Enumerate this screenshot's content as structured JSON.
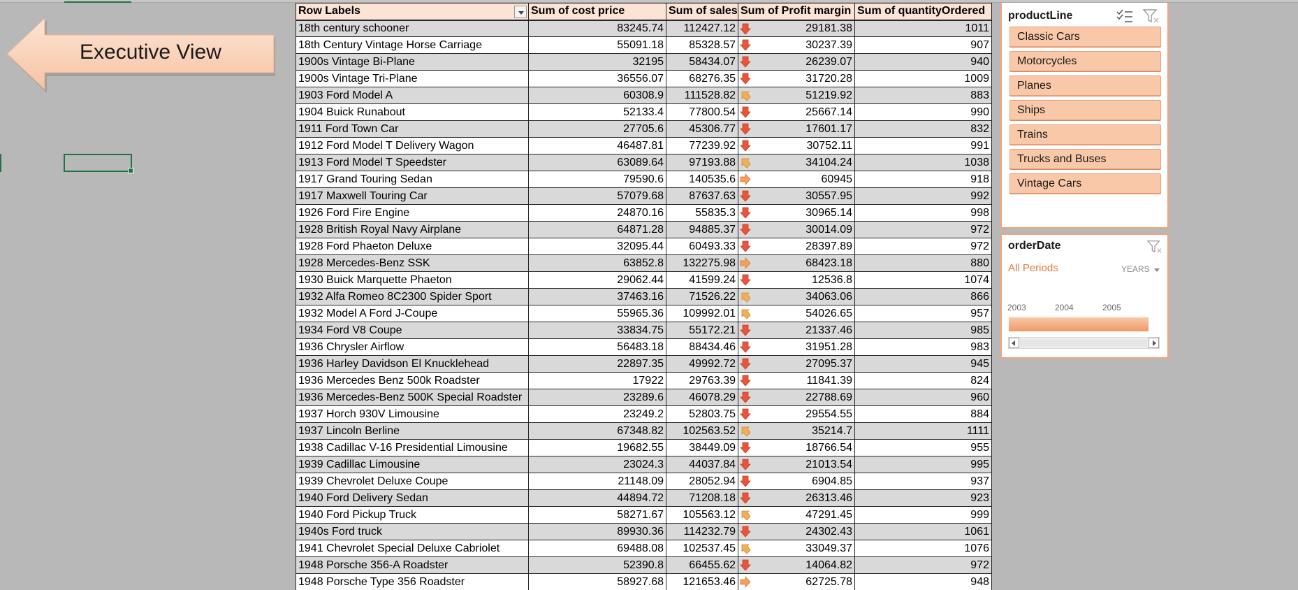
{
  "exec_button": {
    "label": "Executive View"
  },
  "pivot": {
    "headers": [
      "Row Labels",
      "Sum of cost price",
      "Sum of sales",
      "Sum of Profit margin",
      "Sum of quantityOrdered"
    ],
    "rows": [
      {
        "label": "18th century schooner",
        "cost": "83245.74",
        "sales": "112427.12",
        "icon": "arrow-down-icon",
        "profit": "29181.38",
        "qty": "1011"
      },
      {
        "label": "18th Century Vintage Horse Carriage",
        "cost": "55091.18",
        "sales": "85328.57",
        "icon": "arrow-down-icon",
        "profit": "30237.39",
        "qty": "907"
      },
      {
        "label": "1900s Vintage Bi-Plane",
        "cost": "32195",
        "sales": "58434.07",
        "icon": "arrow-down-icon",
        "profit": "26239.07",
        "qty": "940"
      },
      {
        "label": "1900s Vintage Tri-Plane",
        "cost": "36556.07",
        "sales": "68276.35",
        "icon": "arrow-down-icon",
        "profit": "31720.28",
        "qty": "1009"
      },
      {
        "label": "1903 Ford Model A",
        "cost": "60308.9",
        "sales": "111528.82",
        "icon": "arrow-diag-down-icon",
        "profit": "51219.92",
        "qty": "883"
      },
      {
        "label": "1904 Buick Runabout",
        "cost": "52133.4",
        "sales": "77800.54",
        "icon": "arrow-down-icon",
        "profit": "25667.14",
        "qty": "990"
      },
      {
        "label": "1911 Ford Town Car",
        "cost": "27705.6",
        "sales": "45306.77",
        "icon": "arrow-down-icon",
        "profit": "17601.17",
        "qty": "832"
      },
      {
        "label": "1912 Ford Model T Delivery Wagon",
        "cost": "46487.81",
        "sales": "77239.92",
        "icon": "arrow-down-icon",
        "profit": "30752.11",
        "qty": "991"
      },
      {
        "label": "1913 Ford Model T Speedster",
        "cost": "63089.64",
        "sales": "97193.88",
        "icon": "arrow-diag-down-icon",
        "profit": "34104.24",
        "qty": "1038"
      },
      {
        "label": "1917 Grand Touring Sedan",
        "cost": "79590.6",
        "sales": "140535.6",
        "icon": "arrow-right-icon",
        "profit": "60945",
        "qty": "918"
      },
      {
        "label": "1917 Maxwell Touring Car",
        "cost": "57079.68",
        "sales": "87637.63",
        "icon": "arrow-down-icon",
        "profit": "30557.95",
        "qty": "992"
      },
      {
        "label": "1926 Ford Fire Engine",
        "cost": "24870.16",
        "sales": "55835.3",
        "icon": "arrow-down-icon",
        "profit": "30965.14",
        "qty": "998"
      },
      {
        "label": "1928 British Royal Navy Airplane",
        "cost": "64871.28",
        "sales": "94885.37",
        "icon": "arrow-down-icon",
        "profit": "30014.09",
        "qty": "972"
      },
      {
        "label": "1928 Ford Phaeton Deluxe",
        "cost": "32095.44",
        "sales": "60493.33",
        "icon": "arrow-down-icon",
        "profit": "28397.89",
        "qty": "972"
      },
      {
        "label": "1928 Mercedes-Benz SSK",
        "cost": "63852.8",
        "sales": "132275.98",
        "icon": "arrow-right-icon",
        "profit": "68423.18",
        "qty": "880"
      },
      {
        "label": "1930 Buick Marquette Phaeton",
        "cost": "29062.44",
        "sales": "41599.24",
        "icon": "arrow-down-icon",
        "profit": "12536.8",
        "qty": "1074"
      },
      {
        "label": "1932 Alfa Romeo 8C2300 Spider Sport",
        "cost": "37463.16",
        "sales": "71526.22",
        "icon": "arrow-diag-down-icon",
        "profit": "34063.06",
        "qty": "866"
      },
      {
        "label": "1932 Model A Ford J-Coupe",
        "cost": "55965.36",
        "sales": "109992.01",
        "icon": "arrow-diag-down-icon",
        "profit": "54026.65",
        "qty": "957"
      },
      {
        "label": "1934 Ford V8 Coupe",
        "cost": "33834.75",
        "sales": "55172.21",
        "icon": "arrow-down-icon",
        "profit": "21337.46",
        "qty": "985"
      },
      {
        "label": "1936 Chrysler Airflow",
        "cost": "56483.18",
        "sales": "88434.46",
        "icon": "arrow-down-icon",
        "profit": "31951.28",
        "qty": "983"
      },
      {
        "label": "1936 Harley Davidson El Knucklehead",
        "cost": "22897.35",
        "sales": "49992.72",
        "icon": "arrow-down-icon",
        "profit": "27095.37",
        "qty": "945"
      },
      {
        "label": "1936 Mercedes Benz 500k Roadster",
        "cost": "17922",
        "sales": "29763.39",
        "icon": "arrow-down-icon",
        "profit": "11841.39",
        "qty": "824"
      },
      {
        "label": "1936 Mercedes-Benz 500K Special Roadster",
        "cost": "23289.6",
        "sales": "46078.29",
        "icon": "arrow-down-icon",
        "profit": "22788.69",
        "qty": "960"
      },
      {
        "label": "1937 Horch 930V Limousine",
        "cost": "23249.2",
        "sales": "52803.75",
        "icon": "arrow-down-icon",
        "profit": "29554.55",
        "qty": "884"
      },
      {
        "label": "1937 Lincoln Berline",
        "cost": "67348.82",
        "sales": "102563.52",
        "icon": "arrow-diag-down-icon",
        "profit": "35214.7",
        "qty": "1111"
      },
      {
        "label": "1938 Cadillac V-16 Presidential Limousine",
        "cost": "19682.55",
        "sales": "38449.09",
        "icon": "arrow-down-icon",
        "profit": "18766.54",
        "qty": "955"
      },
      {
        "label": "1939 Cadillac Limousine",
        "cost": "23024.3",
        "sales": "44037.84",
        "icon": "arrow-down-icon",
        "profit": "21013.54",
        "qty": "995"
      },
      {
        "label": "1939 Chevrolet Deluxe Coupe",
        "cost": "21148.09",
        "sales": "28052.94",
        "icon": "arrow-down-icon",
        "profit": "6904.85",
        "qty": "937"
      },
      {
        "label": "1940 Ford Delivery Sedan",
        "cost": "44894.72",
        "sales": "71208.18",
        "icon": "arrow-down-icon",
        "profit": "26313.46",
        "qty": "923"
      },
      {
        "label": "1940 Ford Pickup Truck",
        "cost": "58271.67",
        "sales": "105563.12",
        "icon": "arrow-diag-down-icon",
        "profit": "47291.45",
        "qty": "999"
      },
      {
        "label": "1940s Ford truck",
        "cost": "89930.36",
        "sales": "114232.79",
        "icon": "arrow-down-icon",
        "profit": "24302.43",
        "qty": "1061"
      },
      {
        "label": "1941 Chevrolet Special Deluxe Cabriolet",
        "cost": "69488.08",
        "sales": "102537.45",
        "icon": "arrow-diag-down-icon",
        "profit": "33049.37",
        "qty": "1076"
      },
      {
        "label": "1948 Porsche 356-A Roadster",
        "cost": "52390.8",
        "sales": "66455.62",
        "icon": "arrow-down-icon",
        "profit": "14064.82",
        "qty": "972"
      },
      {
        "label": "1948 Porsche Type 356 Roadster",
        "cost": "58927.68",
        "sales": "121653.46",
        "icon": "arrow-right-icon",
        "profit": "62725.78",
        "qty": "948"
      }
    ]
  },
  "slicer_productline": {
    "title": "productLine",
    "items": [
      "Classic Cars",
      "Motorcycles",
      "Planes",
      "Ships",
      "Trains",
      "Trucks and Buses",
      "Vintage Cars"
    ]
  },
  "slicer_orderdate": {
    "title": "orderDate",
    "period": "All Periods",
    "level": "YEARS",
    "years": [
      "2003",
      "2004",
      "2005"
    ]
  },
  "colors": {
    "header_bg": "#fbe3d6",
    "band_row": "#d9d9d9",
    "slicer_item": "#f9c8a8",
    "arrow_down": "#e8553a",
    "arrow_diag": "#f0b05a",
    "arrow_right": "#f5a05a",
    "accent": "#217346"
  }
}
